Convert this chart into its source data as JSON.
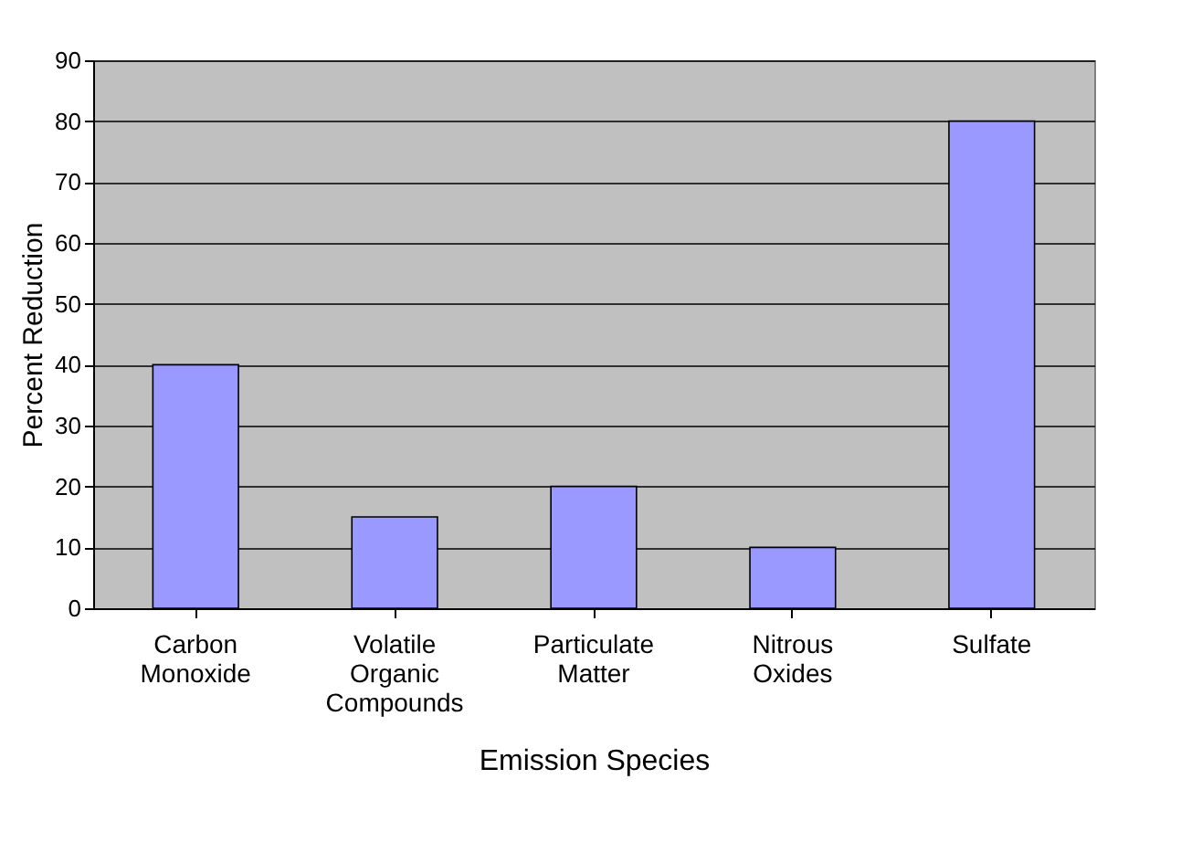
{
  "chart_data": {
    "type": "bar",
    "xlabel": "Emission Species",
    "ylabel": "Percent Reduction",
    "categories": [
      "Carbon Monoxide",
      "Volatile Organic Compounds",
      "Particulate Matter",
      "Nitrous Oxides",
      "Sulfate"
    ],
    "values": [
      40,
      15,
      20,
      10,
      80
    ],
    "color": "#9999ff",
    "ylim": [
      0,
      90
    ],
    "yticks": [
      0,
      10,
      20,
      30,
      40,
      50,
      60,
      70,
      80,
      90
    ],
    "grid": "y"
  }
}
